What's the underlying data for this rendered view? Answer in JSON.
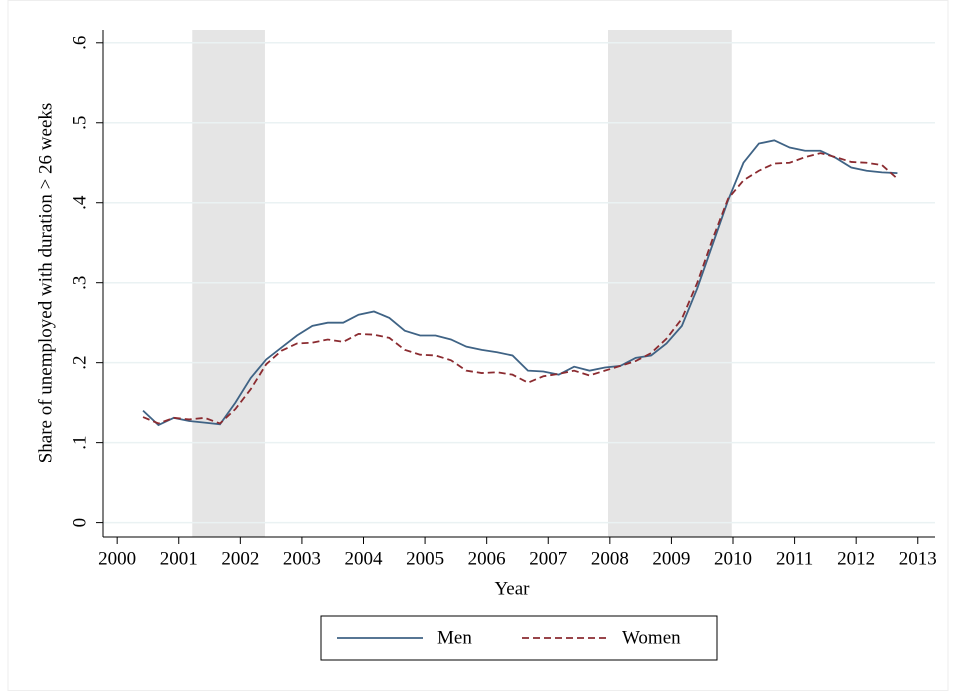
{
  "chart_data": {
    "type": "line",
    "xlabel": "Year",
    "ylabel": "Share of unemployed with duration > 26 weeks",
    "x": [
      2000.42,
      2000.67,
      2000.92,
      2001.17,
      2001.42,
      2001.67,
      2001.92,
      2002.17,
      2002.42,
      2002.67,
      2002.92,
      2003.17,
      2003.42,
      2003.67,
      2003.92,
      2004.17,
      2004.42,
      2004.67,
      2004.92,
      2005.17,
      2005.42,
      2005.67,
      2005.92,
      2006.17,
      2006.42,
      2006.67,
      2006.92,
      2007.17,
      2007.42,
      2007.67,
      2007.92,
      2008.17,
      2008.42,
      2008.67,
      2008.92,
      2009.17,
      2009.42,
      2009.67,
      2009.92,
      2010.17,
      2010.42,
      2010.67,
      2010.92,
      2011.17,
      2011.42,
      2011.67,
      2011.92,
      2012.17,
      2012.42,
      2012.67
    ],
    "series": [
      {
        "name": "Men",
        "color": "#3f6385",
        "dash": false,
        "values": [
          0.14,
          0.122,
          0.131,
          0.127,
          0.125,
          0.123,
          0.15,
          0.181,
          0.204,
          0.219,
          0.234,
          0.246,
          0.25,
          0.25,
          0.26,
          0.264,
          0.256,
          0.24,
          0.234,
          0.234,
          0.229,
          0.22,
          0.216,
          0.213,
          0.209,
          0.19,
          0.189,
          0.185,
          0.195,
          0.19,
          0.194,
          0.196,
          0.206,
          0.209,
          0.224,
          0.246,
          0.293,
          0.348,
          0.403,
          0.45,
          0.474,
          0.478,
          0.469,
          0.465,
          0.465,
          0.456,
          0.444,
          0.44,
          0.438,
          0.437
        ]
      },
      {
        "name": "Women",
        "color": "#8b2b30",
        "dash": true,
        "values": [
          0.132,
          0.124,
          0.131,
          0.129,
          0.131,
          0.124,
          0.142,
          0.167,
          0.198,
          0.215,
          0.224,
          0.225,
          0.229,
          0.226,
          0.236,
          0.235,
          0.231,
          0.216,
          0.21,
          0.209,
          0.203,
          0.19,
          0.187,
          0.188,
          0.185,
          0.175,
          0.183,
          0.186,
          0.19,
          0.184,
          0.19,
          0.196,
          0.202,
          0.212,
          0.23,
          0.255,
          0.3,
          0.355,
          0.405,
          0.428,
          0.44,
          0.449,
          0.45,
          0.457,
          0.462,
          0.457,
          0.451,
          0.45,
          0.447,
          0.43
        ]
      }
    ],
    "shaded_periods": [
      [
        2001.22,
        2002.4
      ],
      [
        2007.97,
        2009.98
      ]
    ],
    "shade_color": "#e5e5e5",
    "xlim": [
      1999.77,
      2013.28
    ],
    "ylim": [
      -0.018,
      0.616
    ],
    "xticks": [
      2000,
      2001,
      2002,
      2003,
      2004,
      2005,
      2006,
      2007,
      2008,
      2009,
      2010,
      2011,
      2012,
      2013
    ],
    "yticks": [
      0,
      {
        "value": 0.1,
        "label": ".1"
      },
      {
        "value": 0.2,
        "label": ".2"
      },
      {
        "value": 0.3,
        "label": ".3"
      },
      {
        "value": 0.4,
        "label": ".4"
      },
      {
        "value": 0.5,
        "label": ".5"
      },
      {
        "value": 0.6,
        "label": ".6"
      }
    ],
    "grid": true
  }
}
